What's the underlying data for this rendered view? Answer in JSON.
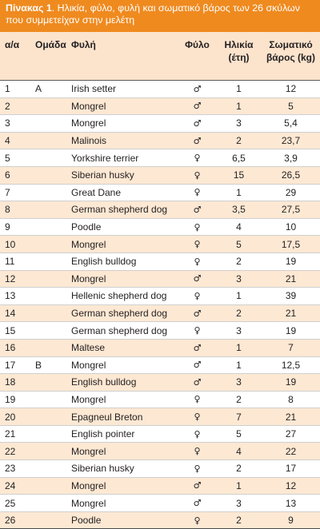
{
  "caption": {
    "label": "Πίνακας 1",
    "text": ". Ηλικία, φύλο, φυλή και σωματικό βάρος των 26 σκύλων που συμμετείχαν στην μελέτη"
  },
  "columns": {
    "num": "α/α",
    "group": "Ομάδα",
    "breed": "Φυλή",
    "sex": "Φύλο",
    "age_line1": "Ηλικία",
    "age_line2": "(έτη)",
    "weight_line1": "Σωματικό",
    "weight_line2": "βάρος (kg)"
  },
  "rows": [
    {
      "num": "1",
      "group": "A",
      "breed": "Irish setter",
      "sex": "♂",
      "age": "1",
      "weight": "12"
    },
    {
      "num": "2",
      "group": "",
      "breed": "Mongrel",
      "sex": "♂",
      "age": "1",
      "weight": "5"
    },
    {
      "num": "3",
      "group": "",
      "breed": "Mongrel",
      "sex": "♂",
      "age": "3",
      "weight": "5,4"
    },
    {
      "num": "4",
      "group": "",
      "breed": "Malinois",
      "sex": "♂",
      "age": "2",
      "weight": "23,7"
    },
    {
      "num": "5",
      "group": "",
      "breed": "Yorkshire terrier",
      "sex": "♀",
      "age": "6,5",
      "weight": "3,9"
    },
    {
      "num": "6",
      "group": "",
      "breed": "Siberian husky",
      "sex": "♀",
      "age": "15",
      "weight": "26,5"
    },
    {
      "num": "7",
      "group": "",
      "breed": "Great Dane",
      "sex": "♀",
      "age": "1",
      "weight": "29"
    },
    {
      "num": "8",
      "group": "",
      "breed": "German shepherd dog",
      "sex": "♂",
      "age": "3,5",
      "weight": "27,5"
    },
    {
      "num": "9",
      "group": "",
      "breed": "Poodle",
      "sex": "♀",
      "age": "4",
      "weight": "10"
    },
    {
      "num": "10",
      "group": "",
      "breed": "Mongrel",
      "sex": "♀",
      "age": "5",
      "weight": "17,5"
    },
    {
      "num": "11",
      "group": "",
      "breed": "English bulldog",
      "sex": "♀",
      "age": "2",
      "weight": "19"
    },
    {
      "num": "12",
      "group": "",
      "breed": "Mongrel",
      "sex": "♂",
      "age": "3",
      "weight": "21"
    },
    {
      "num": "13",
      "group": "",
      "breed": "Hellenic shepherd dog",
      "sex": "♀",
      "age": "1",
      "weight": "39"
    },
    {
      "num": "14",
      "group": "",
      "breed": "German shepherd dog",
      "sex": "♂",
      "age": "2",
      "weight": "21"
    },
    {
      "num": "15",
      "group": "",
      "breed": "German shepherd dog",
      "sex": "♀",
      "age": "3",
      "weight": "19"
    },
    {
      "num": "16",
      "group": "",
      "breed": "Maltese",
      "sex": "♂",
      "age": "1",
      "weight": "7"
    },
    {
      "num": "17",
      "group": "B",
      "breed": "Mongrel",
      "sex": "♂",
      "age": "1",
      "weight": "12,5"
    },
    {
      "num": "18",
      "group": "",
      "breed": "English bulldog",
      "sex": "♂",
      "age": "3",
      "weight": "19"
    },
    {
      "num": "19",
      "group": "",
      "breed": "Mongrel",
      "sex": "♀",
      "age": "2",
      "weight": "8"
    },
    {
      "num": "20",
      "group": "",
      "breed": "Epagneul Breton",
      "sex": "♀",
      "age": "7",
      "weight": "21"
    },
    {
      "num": "21",
      "group": "",
      "breed": "English pointer",
      "sex": "♀",
      "age": "5",
      "weight": "27"
    },
    {
      "num": "22",
      "group": "",
      "breed": "Mongrel",
      "sex": "♀",
      "age": "4",
      "weight": "22"
    },
    {
      "num": "23",
      "group": "",
      "breed": "Siberian husky",
      "sex": "♀",
      "age": "2",
      "weight": "17"
    },
    {
      "num": "24",
      "group": "",
      "breed": "Mongrel",
      "sex": "♂",
      "age": "1",
      "weight": "12"
    },
    {
      "num": "25",
      "group": "",
      "breed": "Mongrel",
      "sex": "♂",
      "age": "3",
      "weight": "13"
    },
    {
      "num": "26",
      "group": "",
      "breed": "Poodle",
      "sex": "♀",
      "age": "2",
      "weight": "9"
    }
  ],
  "colors": {
    "caption_bg": "#ef8a1f",
    "stripe": "#fde8d3",
    "header_bg": "#fbe3cc"
  }
}
